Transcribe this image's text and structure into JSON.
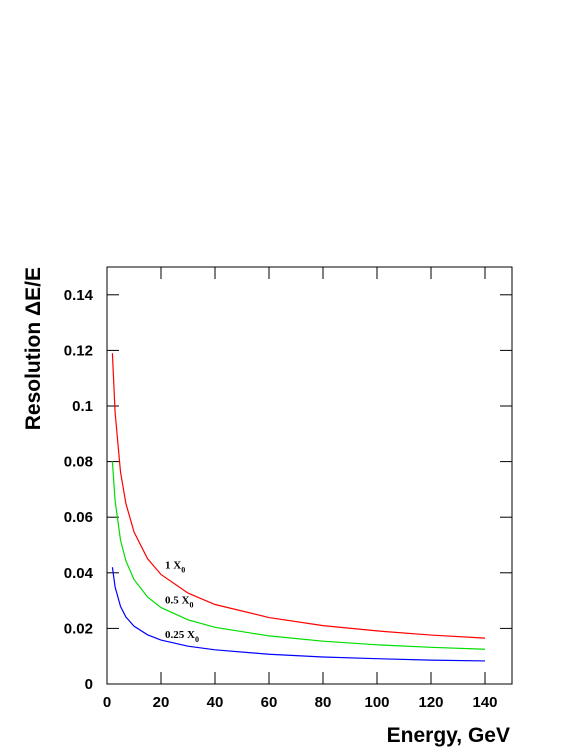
{
  "chart_data": {
    "type": "line",
    "x_label": "Energy, GeV",
    "y_label": "Resolution ΔE/E",
    "x": [
      2,
      3,
      5,
      7,
      10,
      15,
      20,
      30,
      40,
      60,
      80,
      100,
      120,
      140
    ],
    "series": [
      {
        "name": "1 X",
        "name_sub": "0",
        "color": "#ff0000",
        "values": [
          0.119,
          0.0977,
          0.0763,
          0.0649,
          0.0547,
          0.0451,
          0.0394,
          0.0327,
          0.0286,
          0.0239,
          0.021,
          0.0191,
          0.0176,
          0.0165
        ]
      },
      {
        "name": "0.5 X",
        "name_sub": "0",
        "color": "#00dd00",
        "values": [
          0.08,
          0.0659,
          0.0518,
          0.0443,
          0.0376,
          0.0313,
          0.0275,
          0.0231,
          0.0204,
          0.0173,
          0.0154,
          0.0141,
          0.0132,
          0.0125
        ]
      },
      {
        "name": "0.25 X",
        "name_sub": "0",
        "color": "#0000ff",
        "values": [
          0.042,
          0.0349,
          0.0279,
          0.0241,
          0.0208,
          0.0177,
          0.0158,
          0.0136,
          0.0123,
          0.0107,
          0.0097,
          0.0091,
          0.0086,
          0.0083
        ]
      }
    ],
    "xlim": [
      0,
      150
    ],
    "xticks": [
      0,
      20,
      40,
      60,
      80,
      100,
      120,
      140
    ],
    "ylim": [
      0,
      0.15
    ],
    "yticks": [
      0,
      0.02,
      0.04,
      0.06,
      0.08,
      0.1,
      0.12,
      0.14
    ]
  }
}
